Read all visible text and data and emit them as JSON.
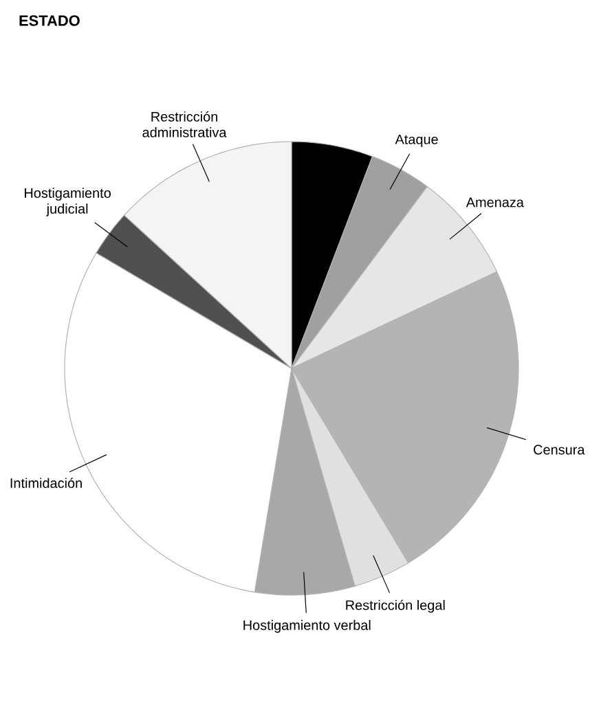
{
  "chart_data": {
    "type": "pie",
    "title": "ESTADO",
    "categories": [
      null,
      "Ataque",
      "Amenaza",
      "Censura",
      "Restricción legal",
      "Hostigamiento verbal",
      "Intimidación",
      "Hostigamiento judicial",
      "Restricción administrativa"
    ],
    "values": [
      5.8,
      4.4,
      7.8,
      23.4,
      4.1,
      7.1,
      30.9,
      3.3,
      13.2
    ],
    "colors": [
      "#000000",
      "#a0a0a0",
      "#e6e6e6",
      "#b4b4b4",
      "#e0e0e0",
      "#a8a8a8",
      "#ffffff",
      "#505050",
      "#f4f4f4"
    ]
  }
}
